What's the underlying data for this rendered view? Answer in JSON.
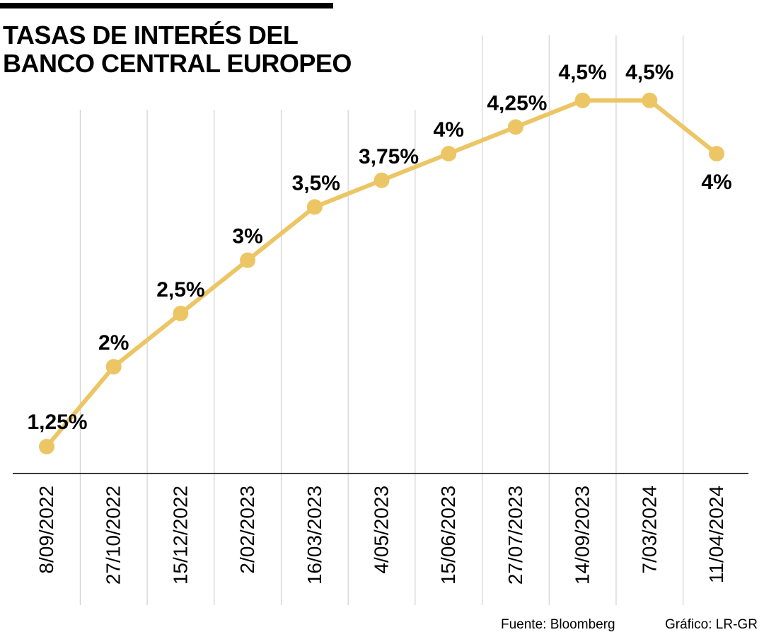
{
  "title": "TASAS DE INTERÉS DEL BANCO CENTRAL EUROPEO",
  "source": "Fuente: Bloomberg",
  "credit": "Gráfico: LR-GR",
  "colors": {
    "line": "#ecc565",
    "grid": "#c8c8c8",
    "axis": "#3a3a3a",
    "text": "#000000"
  },
  "chart_data": {
    "type": "line",
    "title": "TASAS DE INTERÉS DEL BANCO CENTRAL EUROPEO",
    "xlabel": "",
    "ylabel": "",
    "grid": "vertical",
    "legend": "none",
    "categories": [
      "8/09/2022",
      "27/10/2022",
      "15/12/2022",
      "2/02/2023",
      "16/03/2023",
      "4/05/2023",
      "15/06/2023",
      "27/07/2023",
      "14/09/2023",
      "7/03/2024",
      "11/04/2024"
    ],
    "values": [
      1.25,
      2,
      2.5,
      3,
      3.5,
      3.75,
      4,
      4.25,
      4.5,
      4.5,
      4
    ],
    "labels": [
      "1,25%",
      "2%",
      "2,5%",
      "3%",
      "3,5%",
      "3,75%",
      "4%",
      "4,25%",
      "4,5%",
      "4,5%",
      "4%"
    ]
  }
}
